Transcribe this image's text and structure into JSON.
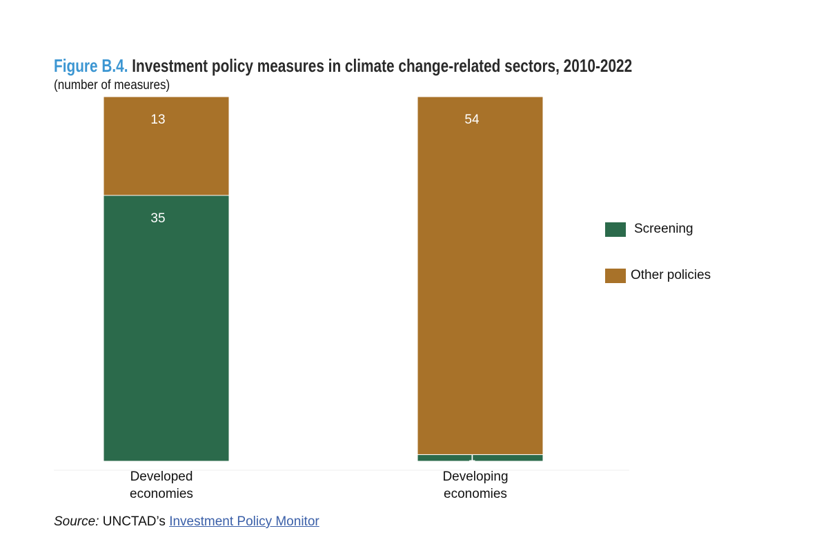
{
  "chart_data": {
    "type": "stacked_bar",
    "stack": "percent",
    "title_prefix": "Figure B.4.",
    "title": "Investment policy measures in climate change-related sectors, 2010-2022",
    "subtitle": "(number of measures)",
    "categories": [
      "Developed economies",
      "Developing economies"
    ],
    "series": [
      {
        "name": "Screening",
        "color": "#2b6a4b",
        "values": [
          35,
          1
        ]
      },
      {
        "name": "Other policies",
        "color": "#a87229",
        "values": [
          13,
          54
        ]
      }
    ],
    "legend": "right",
    "source_label": "Source:",
    "source_text": "UNCTAD’s",
    "source_link": "Investment Policy Monitor"
  }
}
